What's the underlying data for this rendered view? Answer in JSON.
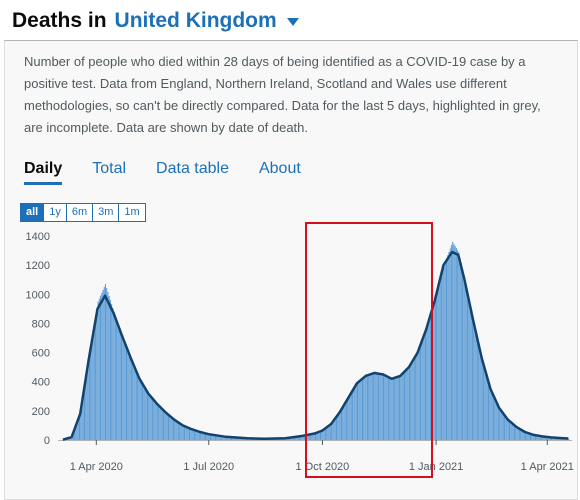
{
  "header": {
    "prefix": "Deaths in",
    "country": "United Kingdom"
  },
  "description": "Number of people who died within 28 days of being identified as a COVID-19 case by a positive test. Data from England, Northern Ireland, Scotland and Wales use different methodologies, so can't be directly compared. Data for the last 5 days, highlighted in grey, are incomplete. Data are shown by date of death.",
  "tabs": [
    {
      "label": "Daily",
      "active": true
    },
    {
      "label": "Total",
      "active": false
    },
    {
      "label": "Data table",
      "active": false
    },
    {
      "label": "About",
      "active": false
    }
  ],
  "timeframes": [
    {
      "label": "all",
      "active": true
    },
    {
      "label": "1y",
      "active": false
    },
    {
      "label": "6m",
      "active": false
    },
    {
      "label": "3m",
      "active": false
    },
    {
      "label": "1m",
      "active": false
    }
  ],
  "colors": {
    "bar": "#5b9bd5",
    "line": "#12436d",
    "accent": "#1d70b8",
    "highlight": "#d4101e"
  },
  "chart_data": {
    "type": "bar",
    "ylim": [
      0,
      1400
    ],
    "y_ticks": [
      0,
      200,
      400,
      600,
      800,
      1000,
      1200,
      1400
    ],
    "x_ticks": [
      "1 Apr 2020",
      "1 Jul 2020",
      "1 Oct 2020",
      "1 Jan 2021",
      "1 Apr 2021"
    ],
    "series": [
      {
        "type": "bar",
        "x": [
          "2020-03-05",
          "2020-03-12",
          "2020-03-19",
          "2020-03-26",
          "2020-04-02",
          "2020-04-08",
          "2020-04-15",
          "2020-04-22",
          "2020-04-29",
          "2020-05-06",
          "2020-05-13",
          "2020-05-20",
          "2020-05-27",
          "2020-06-03",
          "2020-06-10",
          "2020-06-17",
          "2020-06-24",
          "2020-07-01",
          "2020-07-15",
          "2020-08-01",
          "2020-08-15",
          "2020-09-01",
          "2020-09-15",
          "2020-09-25",
          "2020-10-01",
          "2020-10-08",
          "2020-10-15",
          "2020-10-22",
          "2020-10-29",
          "2020-11-05",
          "2020-11-12",
          "2020-11-19",
          "2020-11-26",
          "2020-12-03",
          "2020-12-10",
          "2020-12-17",
          "2020-12-24",
          "2020-12-31",
          "2021-01-07",
          "2021-01-14",
          "2021-01-19",
          "2021-01-24",
          "2021-01-31",
          "2021-02-07",
          "2021-02-14",
          "2021-02-21",
          "2021-02-28",
          "2021-03-07",
          "2021-03-14",
          "2021-03-21",
          "2021-03-28",
          "2021-04-04",
          "2021-04-11",
          "2021-04-18"
        ],
        "values": [
          2,
          25,
          200,
          600,
          950,
          1070,
          880,
          720,
          560,
          420,
          320,
          250,
          190,
          140,
          100,
          75,
          55,
          40,
          22,
          12,
          9,
          12,
          28,
          45,
          65,
          110,
          190,
          290,
          390,
          450,
          470,
          450,
          420,
          440,
          500,
          600,
          760,
          960,
          1200,
          1360,
          1290,
          1100,
          820,
          560,
          350,
          220,
          140,
          90,
          55,
          35,
          25,
          18,
          14,
          10
        ]
      },
      {
        "type": "line",
        "x": [
          "2020-03-05",
          "2020-03-12",
          "2020-03-19",
          "2020-03-26",
          "2020-04-02",
          "2020-04-08",
          "2020-04-15",
          "2020-04-22",
          "2020-04-29",
          "2020-05-06",
          "2020-05-13",
          "2020-05-20",
          "2020-05-27",
          "2020-06-03",
          "2020-06-10",
          "2020-06-17",
          "2020-06-24",
          "2020-07-01",
          "2020-07-15",
          "2020-08-01",
          "2020-08-15",
          "2020-09-01",
          "2020-09-15",
          "2020-09-25",
          "2020-10-01",
          "2020-10-08",
          "2020-10-15",
          "2020-10-22",
          "2020-10-29",
          "2020-11-05",
          "2020-11-12",
          "2020-11-19",
          "2020-11-26",
          "2020-12-03",
          "2020-12-10",
          "2020-12-17",
          "2020-12-24",
          "2020-12-31",
          "2021-01-07",
          "2021-01-14",
          "2021-01-19",
          "2021-01-24",
          "2021-01-31",
          "2021-02-07",
          "2021-02-14",
          "2021-02-21",
          "2021-02-28",
          "2021-03-07",
          "2021-03-14",
          "2021-03-21",
          "2021-03-28",
          "2021-04-04",
          "2021-04-11",
          "2021-04-18"
        ],
        "values": [
          2,
          20,
          180,
          560,
          900,
          990,
          870,
          710,
          560,
          420,
          320,
          250,
          190,
          140,
          100,
          75,
          55,
          40,
          22,
          12,
          9,
          12,
          28,
          45,
          65,
          110,
          190,
          290,
          390,
          440,
          460,
          450,
          420,
          440,
          500,
          600,
          760,
          960,
          1200,
          1290,
          1270,
          1100,
          820,
          560,
          350,
          220,
          140,
          90,
          55,
          35,
          25,
          18,
          14,
          10
        ]
      }
    ]
  }
}
